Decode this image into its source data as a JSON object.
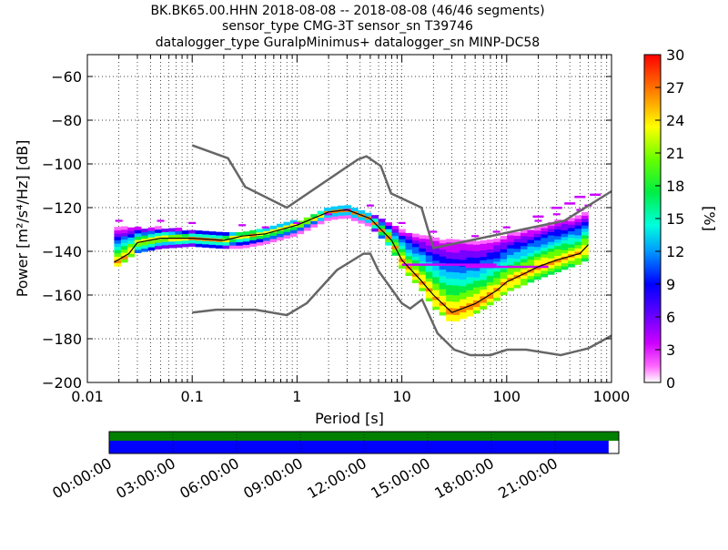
{
  "title": {
    "lines": [
      "BK.BK65.00.HHN   2018-08-08 -- 2018-08-08  (46/46 segments)",
      "sensor_type CMG-3T sensor_sn T39746",
      "datalogger_type GuralpMinimus+ datalogger_sn MINP-DC58"
    ]
  },
  "colorbar": {
    "label": "[%]",
    "ticks": [
      "0",
      "3",
      "6",
      "9",
      "12",
      "15",
      "18",
      "21",
      "24",
      "27",
      "30"
    ]
  },
  "timeline": {
    "labels": [
      "00:00:00",
      "03:00:00",
      "06:00:00",
      "09:00:00",
      "12:00:00",
      "15:00:00",
      "18:00:00",
      "21:00:00"
    ],
    "top_bar_color": "#008000",
    "bottom_bar_color": "#0000ff",
    "coverage_fraction": 0.98
  },
  "chart_data": {
    "type": "heatmap",
    "xlabel": "Period [s]",
    "ylabel": "Power [m²/s⁴/Hz] [dB]",
    "xscale": "log",
    "xlim": [
      0.01,
      1000
    ],
    "ylim": [
      -200,
      -50
    ],
    "xticks": [
      "0.01",
      "0.1",
      "1",
      "10",
      "100",
      "1000"
    ],
    "yticks": [
      "−60",
      "−80",
      "−100",
      "−120",
      "−140",
      "−160",
      "−180",
      "−200"
    ],
    "ytick_values": [
      -60,
      -80,
      -100,
      -120,
      -140,
      -160,
      -180,
      -200
    ],
    "color_range": [
      0,
      30
    ],
    "mode_curve": {
      "period": [
        0.018,
        0.025,
        0.03,
        0.05,
        0.1,
        0.2,
        0.3,
        0.5,
        1,
        2,
        3,
        5,
        8,
        10,
        15,
        20,
        30,
        50,
        80,
        100,
        150,
        200,
        300,
        500,
        600
      ],
      "power": [
        -145,
        -141,
        -136,
        -134,
        -134,
        -135,
        -133,
        -132,
        -128,
        -122,
        -121,
        -125,
        -135,
        -144,
        -153,
        -160,
        -168,
        -164,
        -158,
        -154,
        -150,
        -147,
        -144,
        -141,
        -137
      ]
    },
    "nhnm": {
      "period": [
        0.1,
        0.22,
        0.32,
        0.8,
        3.8,
        4.6,
        6.3,
        7.9,
        15.4,
        20,
        354.8,
        1000
      ],
      "power": [
        -91.5,
        -97.4,
        -110.5,
        -120,
        -98,
        -96.5,
        -101,
        -113.5,
        -120,
        -138.5,
        -126,
        -112.5
      ]
    },
    "nlnm": {
      "period": [
        0.1,
        0.17,
        0.4,
        0.8,
        1.24,
        2.4,
        4.3,
        5,
        6,
        10,
        12,
        15.6,
        21.9,
        31.6,
        45,
        70,
        101,
        154,
        328,
        600,
        1000
      ],
      "power": [
        -168,
        -166.7,
        -166.7,
        -169.2,
        -163.7,
        -148.6,
        -141.1,
        -141.1,
        -149,
        -163.8,
        -166.2,
        -162.1,
        -177.5,
        -185,
        -187.5,
        -187.5,
        -185,
        -185,
        -187.5,
        -184.4,
        -178.6
      ]
    },
    "low_percentile_curve": {
      "period": [
        0.018,
        0.03,
        0.05,
        0.1,
        0.2,
        0.3,
        0.5,
        1,
        2,
        3,
        5,
        8,
        10,
        15,
        20,
        30,
        50,
        80,
        100,
        200,
        500,
        600
      ],
      "power": [
        -144,
        -140,
        -138,
        -137,
        -138,
        -138,
        -136,
        -132,
        -125,
        -124,
        -128,
        -138,
        -147,
        -156,
        -165,
        -172,
        -168,
        -162,
        -158,
        -152,
        -145,
        -143
      ]
    },
    "high_percentile_curve": {
      "period": [
        0.02,
        0.05,
        0.1,
        0.3,
        0.5,
        1,
        2,
        3,
        5,
        10,
        20,
        50,
        80,
        100,
        200,
        300,
        500,
        600
      ],
      "power": [
        -129,
        -129,
        -130,
        -131,
        -132,
        -130,
        -126,
        -124,
        -122,
        -130,
        -134,
        -136,
        -134,
        -132,
        -129,
        -126,
        -124,
        -122
      ]
    },
    "upper_outliers": {
      "period": [
        200,
        300,
        400,
        500,
        700
      ],
      "power": [
        -124,
        -120,
        -118,
        -115,
        -114
      ]
    },
    "flat_band": {
      "period": [
        10,
        80
      ],
      "power": -146
    },
    "mid_band": {
      "period": [
        40,
        250
      ],
      "power": -147
    }
  }
}
